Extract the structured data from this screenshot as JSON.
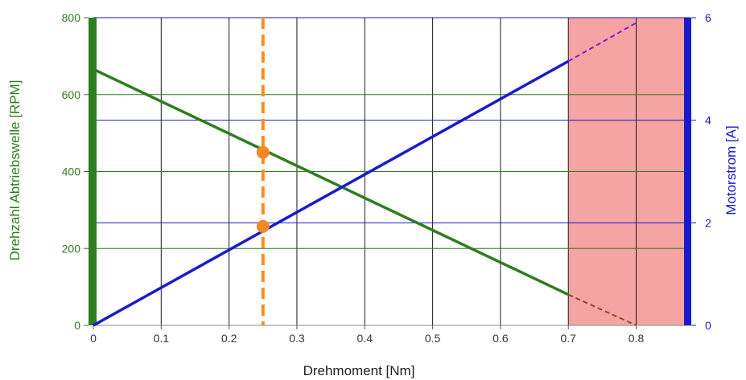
{
  "chart_data": {
    "type": "line",
    "xlabel": "Drehmoment [Nm]",
    "ylabel_left": "Drehzahl Abtriebswelle [RPM]",
    "ylabel_right": "Motorstrom [A]",
    "xlim": [
      0,
      0.88
    ],
    "ylim_left": [
      0,
      800
    ],
    "ylim_right": [
      0,
      6
    ],
    "x_ticks": [
      "0",
      "0.1",
      "0.2",
      "0.3",
      "0.4",
      "0.5",
      "0.6",
      "0.7",
      "0.8"
    ],
    "y_left_ticks": [
      "0",
      "200",
      "400",
      "600",
      "800"
    ],
    "y_right_ticks": [
      "0",
      "2",
      "4",
      "6"
    ],
    "grid": true,
    "overload_region": {
      "x_start": 0.7,
      "x_end": 0.88
    },
    "operating_torque": 0.25,
    "series": [
      {
        "axis": "left",
        "color": "#2e7d1e",
        "solid": [
          [
            0,
            666
          ],
          [
            0.7,
            80
          ]
        ],
        "dashed": [
          [
            0.7,
            80
          ],
          [
            0.8,
            0
          ]
        ]
      },
      {
        "axis": "right",
        "color": "#1a1acc",
        "solid": [
          [
            0,
            0
          ],
          [
            0.7,
            5.15
          ]
        ],
        "dashed": [
          [
            0.7,
            5.15
          ],
          [
            0.8,
            5.9
          ]
        ]
      }
    ],
    "markers": [
      {
        "axis": "left",
        "x": 0.25,
        "y": 450
      },
      {
        "axis": "right",
        "x": 0.25,
        "y": 1.93
      }
    ]
  },
  "colors": {
    "speed": "#2e7d1e",
    "current": "#1a1acc",
    "overload_fill": "#f5a3a3",
    "operating_line": "#ff8c1a",
    "marker": "#f08a24"
  }
}
